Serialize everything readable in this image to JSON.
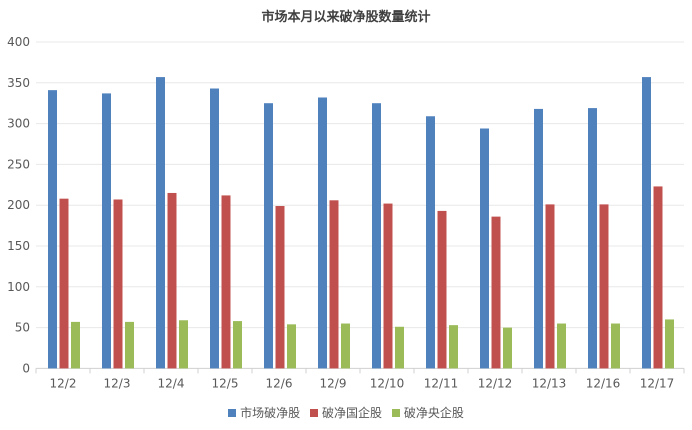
{
  "chart_data": {
    "type": "bar",
    "title": "市场本月以来破净股数量统计",
    "categories": [
      "12/2",
      "12/3",
      "12/4",
      "12/5",
      "12/6",
      "12/9",
      "12/10",
      "12/11",
      "12/12",
      "12/13",
      "12/16",
      "12/17"
    ],
    "series": [
      {
        "name": "市场破净股",
        "color": "#4f81bd",
        "values": [
          341,
          337,
          357,
          343,
          325,
          332,
          325,
          309,
          294,
          318,
          319,
          357
        ]
      },
      {
        "name": "破净国企股",
        "color": "#c0504d",
        "values": [
          208,
          207,
          215,
          212,
          199,
          206,
          202,
          193,
          186,
          201,
          201,
          223
        ]
      },
      {
        "name": "破净央企股",
        "color": "#9bbb59",
        "values": [
          57,
          57,
          59,
          58,
          54,
          55,
          51,
          53,
          50,
          55,
          55,
          60
        ]
      }
    ],
    "ylim": [
      0,
      400
    ],
    "yticks": [
      0,
      50,
      100,
      150,
      200,
      250,
      300,
      350,
      400
    ],
    "grid": true,
    "legend": "bottom"
  }
}
